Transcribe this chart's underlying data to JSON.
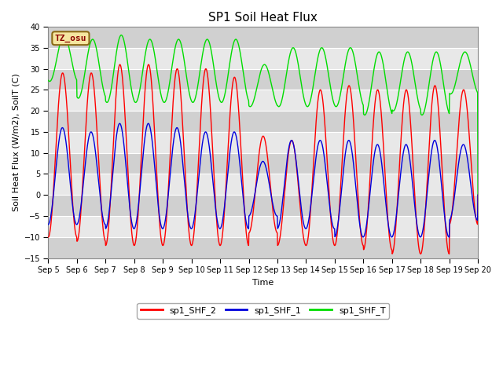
{
  "title": "SP1 Soil Heat Flux",
  "ylabel": "Soil Heat Flux (W/m2), SoilT (C)",
  "xlabel": "Time",
  "tz_label": "TZ_osu",
  "ylim": [
    -15,
    40
  ],
  "yticks": [
    -15,
    -10,
    -5,
    0,
    5,
    10,
    15,
    20,
    25,
    30,
    35,
    40
  ],
  "xtick_labels": [
    "Sep 5",
    "Sep 6",
    "Sep 7",
    "Sep 8",
    "Sep 9",
    "Sep 10",
    "Sep 11",
    "Sep 12",
    "Sep 13",
    "Sep 14",
    "Sep 15",
    "Sep 16",
    "Sep 17",
    "Sep 18",
    "Sep 19",
    "Sep 20"
  ],
  "n_days": 15,
  "shf2_color": "#ff0000",
  "shf1_color": "#0000dd",
  "shft_color": "#00dd00",
  "plot_bg": "#dcdcdc",
  "band_light": "#e8e8e8",
  "band_dark": "#d0d0d0",
  "legend_labels": [
    "sp1_SHF_2",
    "sp1_SHF_1",
    "sp1_SHF_T"
  ],
  "figsize": [
    6.4,
    4.8
  ],
  "dpi": 100,
  "shf2_peaks": [
    29,
    29,
    31,
    31,
    30,
    30,
    28,
    14,
    13,
    25,
    26,
    25,
    25,
    26,
    25
  ],
  "shf2_troughs": [
    -10,
    -11,
    -12,
    -12,
    -12,
    -12,
    -12,
    -9,
    -12,
    -12,
    -12,
    -13,
    -14,
    -14,
    -7
  ],
  "shf1_peaks": [
    16,
    15,
    17,
    17,
    16,
    15,
    15,
    8,
    13,
    13,
    13,
    12,
    12,
    13,
    12
  ],
  "shf1_troughs": [
    -7,
    -7,
    -8,
    -8,
    -8,
    -8,
    -8,
    -5,
    -8,
    -8,
    -10,
    -10,
    -10,
    -10,
    -6
  ],
  "shft_peaks": [
    38,
    37,
    38,
    37,
    37,
    37,
    37,
    31,
    35,
    35,
    35,
    34,
    34,
    34,
    34
  ],
  "shft_troughs": [
    27,
    23,
    22,
    22,
    22,
    22,
    22,
    21,
    21,
    21,
    21,
    19,
    20,
    19,
    24
  ]
}
